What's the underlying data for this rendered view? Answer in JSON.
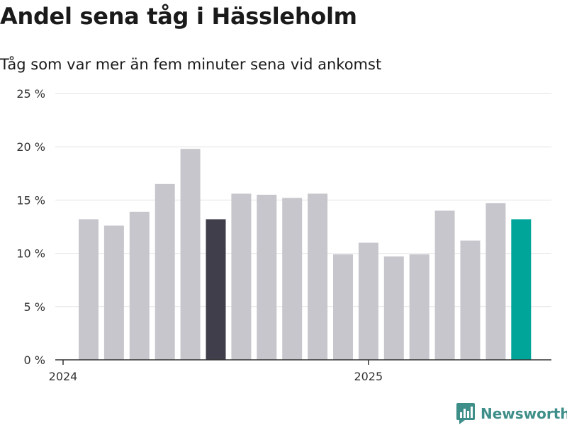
{
  "header": {
    "title": "Andel sena tåg i Hässleholm",
    "subtitle": "Tåg som var mer än fem minuter sena vid ankomst"
  },
  "brand": {
    "name": "Newsworthy",
    "icon": "newsworthy-chart-icon",
    "color": "#3e8e89"
  },
  "chart_data": {
    "type": "bar",
    "categories": [
      "2024-01",
      "2024-02",
      "2024-03",
      "2024-04",
      "2024-05",
      "2024-06",
      "2024-07",
      "2024-08",
      "2024-09",
      "2024-10",
      "2024-11",
      "2024-12",
      "2025-01",
      "2025-02",
      "2025-03",
      "2025-04",
      "2025-05",
      "2025-06"
    ],
    "values": [
      13.2,
      12.6,
      13.9,
      16.5,
      19.8,
      13.2,
      15.6,
      15.5,
      15.2,
      15.6,
      9.9,
      11.0,
      9.7,
      9.9,
      14.0,
      11.2,
      14.7,
      13.2
    ],
    "highlight": [
      {
        "category": "2024-06",
        "color": "#403e4a"
      },
      {
        "category": "2025-06",
        "color": "#00a59a"
      }
    ],
    "bar_color": "#c7c6cc",
    "ylim": [
      0,
      25
    ],
    "yticks": [
      0,
      5,
      10,
      15,
      20,
      25
    ],
    "ytick_labels": [
      "0 %",
      "5 %",
      "10 %",
      "15 %",
      "20 %",
      "25 %"
    ],
    "xtick_labels": [
      {
        "label": "2024",
        "category": "2024-01"
      },
      {
        "label": "2025",
        "category": "2025-01"
      }
    ],
    "grid": true
  }
}
